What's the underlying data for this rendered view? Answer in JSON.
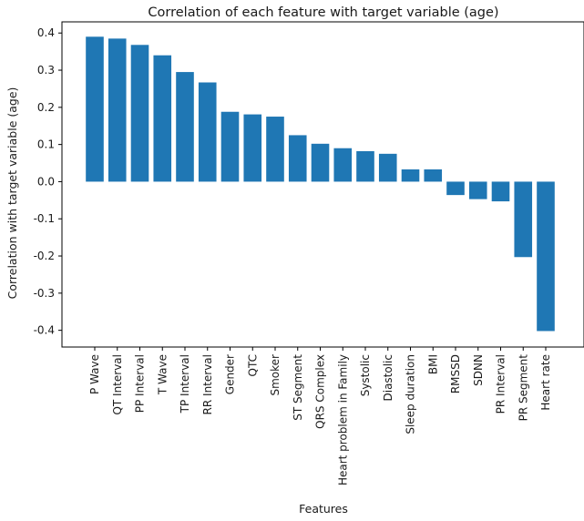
{
  "chart_data": {
    "type": "bar",
    "title": "Correlation of each feature with target variable (age)",
    "xlabel": "Features",
    "ylabel": "Correlation with target variable (age)",
    "categories": [
      "P Wave",
      "QT Interval",
      "PP Interval",
      "T Wave",
      "TP Interval",
      "RR Interval",
      "Gender",
      "QTC",
      "Smoker",
      "ST Segment",
      "QRS Complex",
      "Heart problem in Family",
      "Systolic",
      "Diastolic",
      "Sleep duration",
      "BMI",
      "RMSSD",
      "SDNN",
      "PR Interval",
      "PR Segment",
      "Heart rate"
    ],
    "values": [
      0.39,
      0.385,
      0.368,
      0.34,
      0.295,
      0.267,
      0.188,
      0.181,
      0.175,
      0.125,
      0.102,
      0.09,
      0.082,
      0.075,
      0.033,
      0.033,
      -0.036,
      -0.047,
      -0.053,
      -0.203,
      -0.402
    ],
    "ylim": [
      -0.445,
      0.43
    ],
    "yticks": [
      "0.4",
      "0.3",
      "0.2",
      "0.1",
      "0.0",
      "-0.1",
      "-0.2",
      "-0.3",
      "-0.4"
    ],
    "grid": false,
    "legend": false,
    "bar_color": "#1f77b4"
  }
}
